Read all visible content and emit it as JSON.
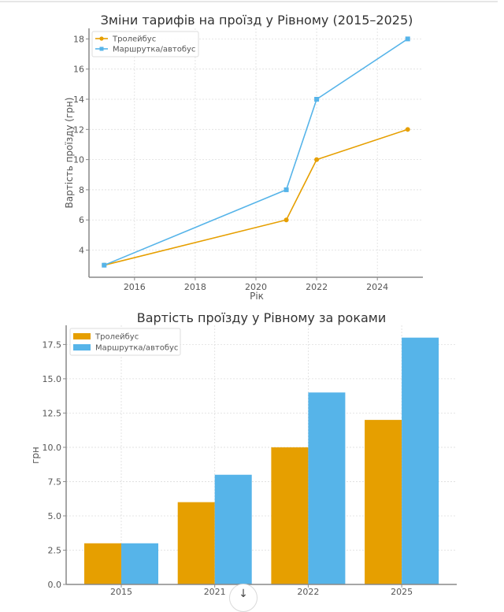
{
  "chart_data": [
    {
      "type": "line",
      "title": "Зміни тарифів на проїзд у Рівному (2015–2025)",
      "xlabel": "Рік",
      "ylabel": "Вартість проїзду (грн)",
      "x": [
        2015,
        2021,
        2022,
        2025
      ],
      "series": [
        {
          "name": "Тролейбус",
          "values": [
            3,
            6,
            10,
            12
          ],
          "color": "#E69F00",
          "marker": "circle"
        },
        {
          "name": "Маршрутка/автобус",
          "values": [
            3,
            8,
            14,
            18
          ],
          "color": "#56B4E9",
          "marker": "square"
        }
      ],
      "xticks": [
        "2016",
        "2018",
        "2020",
        "2022",
        "2024"
      ],
      "yticks": [
        "4",
        "6",
        "8",
        "10",
        "12",
        "14",
        "16",
        "18"
      ],
      "xlim": [
        2014.5,
        2025.5
      ],
      "ylim": [
        2.2,
        18.7
      ],
      "grid": true,
      "legend": "top-left"
    },
    {
      "type": "bar",
      "title": "Вартість проїзду у Рівному за роками",
      "xlabel": "",
      "ylabel": "грн",
      "categories": [
        "2015",
        "2021",
        "2022",
        "2025"
      ],
      "series": [
        {
          "name": "Тролейбус",
          "values": [
            3,
            6,
            10,
            12
          ],
          "color": "#E69F00"
        },
        {
          "name": "Маршрутка/автобус",
          "values": [
            3,
            8,
            14,
            18
          ],
          "color": "#56B4E9"
        }
      ],
      "yticks": [
        "0.0",
        "2.5",
        "5.0",
        "7.5",
        "10.0",
        "12.5",
        "15.0",
        "17.5"
      ],
      "ylim": [
        0,
        18.9
      ],
      "grid": true,
      "legend": "top-left"
    }
  ],
  "ui": {
    "scroll_button_icon": "arrow-down-icon",
    "scroll_button_glyph": "↓"
  }
}
